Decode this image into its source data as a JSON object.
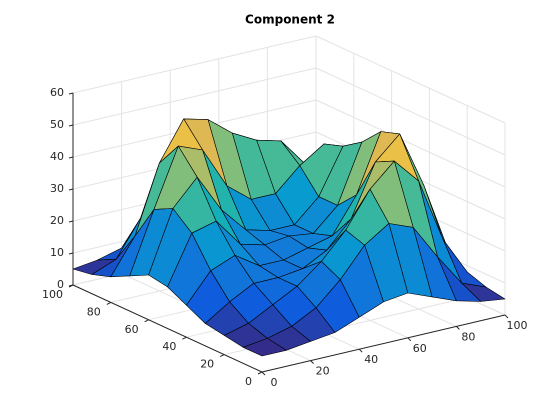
{
  "chart_data": {
    "type": "surface",
    "title": "Component 2",
    "x": [
      0,
      10,
      20,
      30,
      40,
      50,
      60,
      70,
      80,
      90,
      100
    ],
    "y": [
      0,
      10,
      20,
      30,
      40,
      50,
      60,
      70,
      80,
      90,
      100
    ],
    "z": [
      [
        5,
        5,
        6,
        7,
        10,
        13,
        14,
        11,
        8,
        6,
        5
      ],
      [
        5,
        6,
        8,
        12,
        19,
        28,
        33,
        30,
        19,
        9,
        6
      ],
      [
        6,
        8,
        12,
        16,
        22,
        30,
        41,
        48,
        40,
        20,
        8
      ],
      [
        7,
        12,
        16,
        16,
        17,
        21,
        29,
        45,
        52,
        34,
        12
      ],
      [
        10,
        19,
        22,
        17,
        17,
        19,
        21,
        32,
        50,
        42,
        17
      ],
      [
        13,
        28,
        30,
        21,
        19,
        20,
        19,
        26,
        44,
        41,
        18
      ],
      [
        14,
        33,
        41,
        29,
        21,
        19,
        19,
        26,
        40,
        35,
        15
      ],
      [
        11,
        30,
        48,
        45,
        32,
        26,
        26,
        33,
        38,
        25,
        10
      ],
      [
        8,
        19,
        40,
        52,
        50,
        44,
        40,
        38,
        29,
        15,
        7
      ],
      [
        6,
        9,
        20,
        34,
        42,
        41,
        35,
        25,
        15,
        8,
        5
      ],
      [
        5,
        6,
        8,
        12,
        17,
        18,
        15,
        10,
        7,
        5,
        5
      ]
    ],
    "xlim": [
      0,
      100
    ],
    "ylim": [
      0,
      100
    ],
    "zlim": [
      0,
      60
    ],
    "xticks": [
      0,
      20,
      40,
      60,
      80,
      100
    ],
    "yticks": [
      0,
      20,
      40,
      60,
      80,
      100
    ],
    "zticks": [
      0,
      10,
      20,
      30,
      40,
      50,
      60
    ],
    "grid": true,
    "colormap": "parula",
    "edgecolor": "#000000"
  }
}
